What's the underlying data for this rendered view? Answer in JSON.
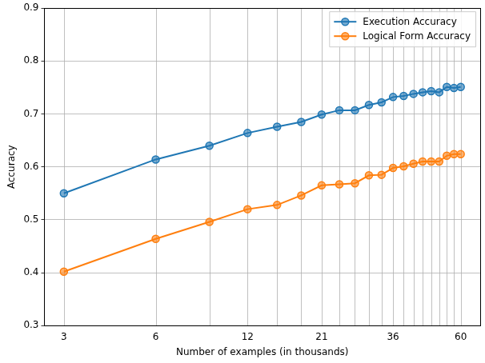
{
  "chart_data": {
    "type": "line",
    "x_label": "Number of examples (in thousands)",
    "y_label": "Accuracy",
    "x": [
      3,
      6,
      9,
      12,
      15,
      18,
      21,
      24,
      27,
      30,
      33,
      36,
      39,
      42,
      45,
      48,
      51,
      54,
      57,
      60
    ],
    "series": [
      {
        "name": "Execution Accuracy",
        "color": "#1f77b4",
        "marker": "circle",
        "values": [
          0.55,
          0.614,
          0.64,
          0.664,
          0.676,
          0.685,
          0.699,
          0.707,
          0.707,
          0.717,
          0.722,
          0.732,
          0.734,
          0.738,
          0.741,
          0.743,
          0.741,
          0.751,
          0.749,
          0.751
        ]
      },
      {
        "name": "Logical Form Accuracy",
        "color": "#ff7f0e",
        "marker": "circle",
        "values": [
          0.402,
          0.464,
          0.496,
          0.52,
          0.528,
          0.546,
          0.565,
          0.567,
          0.569,
          0.584,
          0.585,
          0.598,
          0.601,
          0.606,
          0.61,
          0.61,
          0.61,
          0.621,
          0.624,
          0.624
        ]
      }
    ],
    "log": "x",
    "xlim": [
      2.59,
      69.5
    ],
    "xticks": [
      3,
      6,
      12,
      21,
      36,
      60
    ],
    "ylim": [
      0.3,
      0.9
    ],
    "yticks": [
      0.3,
      0.4,
      0.5,
      0.6,
      0.7,
      0.8,
      0.9
    ],
    "grid": true,
    "legend": "upper right"
  }
}
